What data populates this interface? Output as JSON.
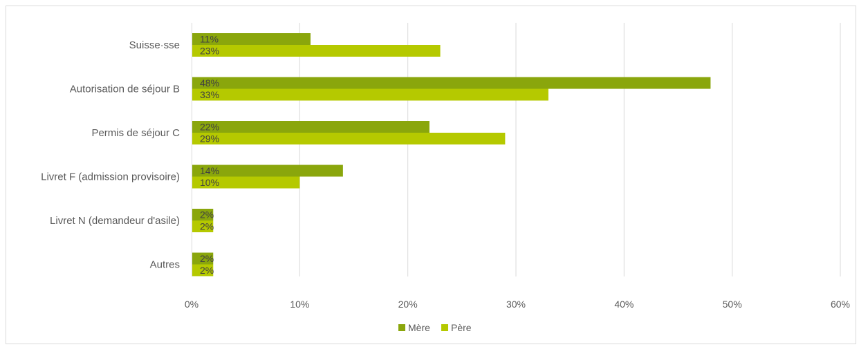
{
  "chart_data": {
    "type": "bar",
    "orientation": "horizontal",
    "categories": [
      "Suisse·sse",
      "Autorisation de séjour B",
      "Permis de séjour C",
      "Livret F (admission provisoire)",
      "Livret N (demandeur d'asile)",
      "Autres"
    ],
    "series": [
      {
        "name": "Mère",
        "values": [
          11,
          48,
          22,
          14,
          2,
          2
        ],
        "color": "#8aa60c"
      },
      {
        "name": "Père",
        "values": [
          23,
          33,
          29,
          10,
          2,
          2
        ],
        "color": "#b5c900"
      }
    ],
    "xlim": [
      0,
      60
    ],
    "xticks": [
      0,
      10,
      20,
      30,
      40,
      50,
      60
    ],
    "tick_suffix": "%",
    "value_suffix": "%",
    "grid": true,
    "legend_position": "bottom",
    "title": "",
    "xlabel": "",
    "ylabel": ""
  }
}
